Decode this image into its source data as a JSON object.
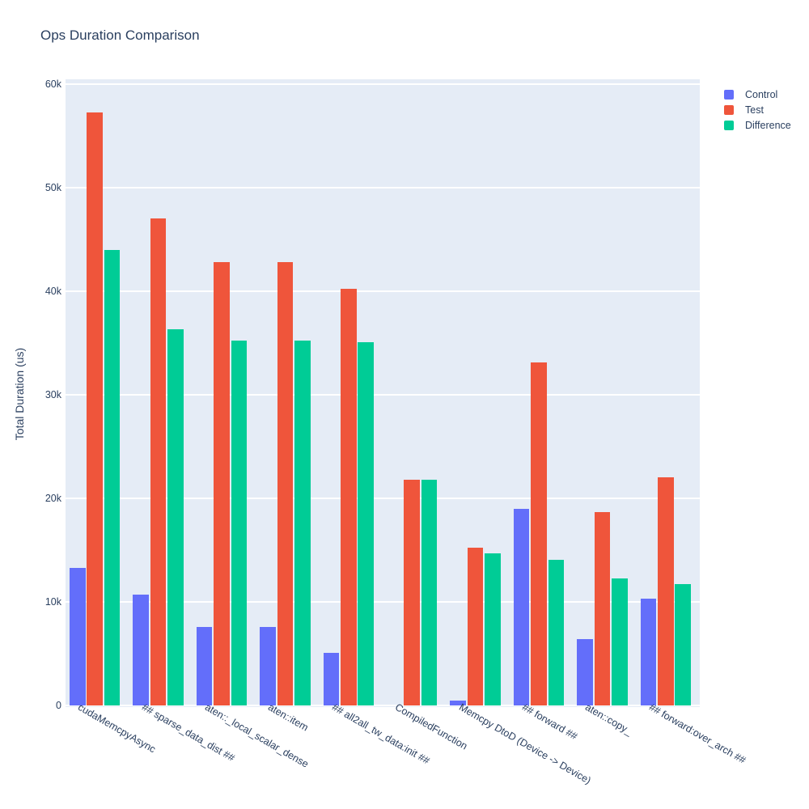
{
  "title": "Ops Duration Comparison",
  "colors": {
    "background": "#ffffff",
    "plot_background": "#e5ecf6",
    "grid": "#ffffff",
    "text": "#2a3f5f",
    "control": "#636efa",
    "test": "#ef553b",
    "difference": "#00cc96"
  },
  "legend": {
    "items": [
      {
        "label": "Control",
        "color": "#636efa"
      },
      {
        "label": "Test",
        "color": "#ef553b"
      },
      {
        "label": "Difference",
        "color": "#00cc96"
      }
    ]
  },
  "chart_data": {
    "type": "bar",
    "title": "Ops Duration Comparison",
    "xlabel": "",
    "ylabel": "Total Duration (us)",
    "ylim": [
      0,
      60000
    ],
    "ytick_interval": 10000,
    "ytick_labels": [
      "0",
      "10k",
      "20k",
      "30k",
      "40k",
      "50k",
      "60k"
    ],
    "grid": true,
    "legend_position": "top-right-outside",
    "x_tick_angle_deg": 30,
    "categories": [
      "cudaMemcpyAsync",
      "## sparse_data_dist ##",
      "aten::_local_scalar_dense",
      "aten::item",
      "## all2all_tw_data:init ##",
      "CompiledFunction",
      "Memcpy DtoD (Device -> Device)",
      "## forward ##",
      "aten::copy_",
      "## forward:over_arch ##"
    ],
    "series": [
      {
        "name": "Control",
        "color": "#636efa",
        "values": [
          13300,
          10700,
          7600,
          7600,
          5100,
          0,
          500,
          19000,
          6400,
          10300
        ]
      },
      {
        "name": "Test",
        "color": "#ef553b",
        "values": [
          57300,
          47000,
          42850,
          42850,
          40200,
          21800,
          15200,
          33100,
          18700,
          22000
        ]
      },
      {
        "name": "Difference",
        "color": "#00cc96",
        "values": [
          44000,
          36300,
          35250,
          35250,
          35100,
          21800,
          14700,
          14100,
          12300,
          11700
        ]
      }
    ]
  }
}
